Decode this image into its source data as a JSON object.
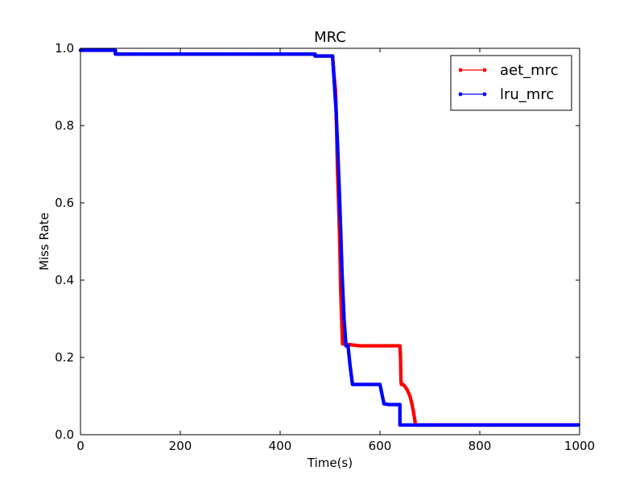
{
  "chart_data": {
    "type": "line",
    "title": "MRC",
    "xlabel": "Time(s)",
    "ylabel": "Miss Rate",
    "xlim": [
      0,
      1000
    ],
    "ylim": [
      0,
      1.0
    ],
    "xticks": [
      "0",
      "200",
      "400",
      "600",
      "800",
      "1000"
    ],
    "yticks": [
      "0.0",
      "0.2",
      "0.4",
      "0.6",
      "0.8",
      "1.0"
    ],
    "grid": false,
    "legend_position": "top-right",
    "series": [
      {
        "name": "aet_mrc",
        "color": "#ff0000",
        "x": [
          0,
          70,
          70,
          470,
          470,
          505,
          508,
          511,
          512,
          513,
          514,
          515,
          516,
          517,
          518,
          519,
          520,
          521,
          525,
          560,
          600,
          640,
          641,
          642,
          643,
          646,
          650,
          655,
          660,
          664,
          667,
          669,
          670,
          671,
          672,
          680,
          800,
          1000
        ],
        "y": [
          0.995,
          0.995,
          0.985,
          0.985,
          0.98,
          0.98,
          0.93,
          0.89,
          0.85,
          0.8,
          0.735,
          0.68,
          0.645,
          0.6,
          0.555,
          0.515,
          0.46,
          0.38,
          0.235,
          0.23,
          0.23,
          0.23,
          0.205,
          0.14,
          0.13,
          0.13,
          0.125,
          0.115,
          0.1,
          0.08,
          0.06,
          0.045,
          0.035,
          0.03,
          0.025,
          0.025,
          0.025,
          0.025
        ]
      },
      {
        "name": "lru_mrc",
        "color": "#0000ff",
        "x": [
          0,
          70,
          70,
          470,
          470,
          505,
          508,
          512,
          516,
          520,
          524,
          528,
          532,
          536,
          540,
          545,
          560,
          600,
          608,
          618,
          640,
          640,
          700,
          800,
          1000
        ],
        "y": [
          0.995,
          0.995,
          0.985,
          0.985,
          0.98,
          0.98,
          0.92,
          0.84,
          0.72,
          0.58,
          0.42,
          0.3,
          0.23,
          0.23,
          0.18,
          0.13,
          0.13,
          0.13,
          0.08,
          0.078,
          0.078,
          0.025,
          0.025,
          0.025,
          0.025
        ]
      }
    ]
  }
}
